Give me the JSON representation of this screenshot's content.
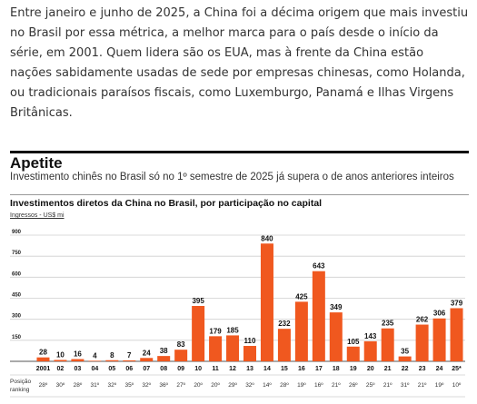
{
  "article": {
    "text": "Entre janeiro e junho de 2025, a China foi a décima origem que mais investiu no Brasil por essa métrica, a melhor marca para o país desde o início da série, em 2001. Quem lidera são os EUA, mas à frente da China estão nações sabidamente usadas de sede por empresas chinesas, como Holanda, ou tradicionais paraísos fiscais, como Luxemburgo, Panamá e Ilhas Virgens Britânicas."
  },
  "colors": {
    "bar": "#f0581f",
    "grid": "#cfcfcf",
    "axis": "#555555",
    "text": "#222222"
  },
  "chart_data": {
    "type": "bar",
    "title": "Apetite",
    "subtitle": "Investimento chinês no Brasil só no 1º semestre de 2025 já supera o de anos anteriores inteiros",
    "panel_title": "Investimentos diretos da China no Brasil, por participação no capital",
    "ylabel": "Ingressos - US$ mi",
    "categories": [
      "2001",
      "02",
      "03",
      "04",
      "05",
      "06",
      "07",
      "08",
      "09",
      "10",
      "11",
      "12",
      "13",
      "14",
      "15",
      "16",
      "17",
      "18",
      "19",
      "20",
      "21",
      "22",
      "23",
      "24",
      "25*"
    ],
    "values": [
      28,
      10,
      16,
      4,
      8,
      7,
      24,
      38,
      83,
      395,
      179,
      185,
      110,
      840,
      232,
      425,
      643,
      349,
      105,
      143,
      235,
      35,
      262,
      306,
      379
    ],
    "ranking_label": "Posição ranking",
    "ranking": [
      "28º",
      "30º",
      "28º",
      "31º",
      "32º",
      "35º",
      "32º",
      "36º",
      "27º",
      "20º",
      "20º",
      "29º",
      "32º",
      "14º",
      "28º",
      "19º",
      "16º",
      "21º",
      "26º",
      "25º",
      "21º",
      "31º",
      "21º",
      "19º",
      "10º"
    ],
    "ylim": [
      0,
      900
    ],
    "yticks": [
      150,
      300,
      450,
      600,
      750,
      900
    ],
    "ytick_labels": [
      "150",
      "300",
      "450",
      "600",
      "750",
      "900"
    ],
    "grid": true
  }
}
